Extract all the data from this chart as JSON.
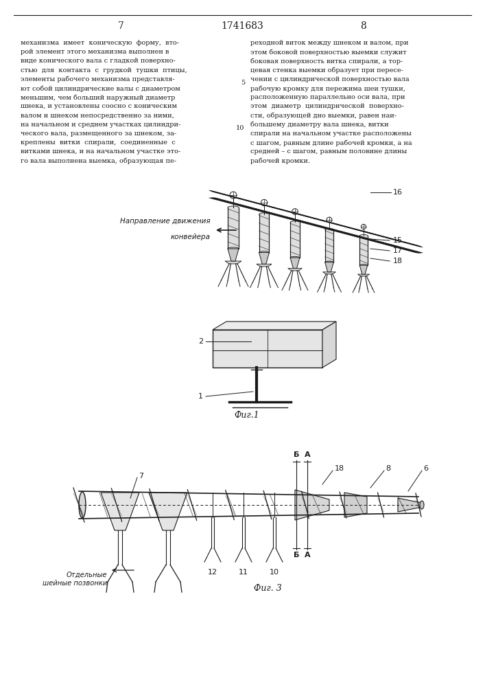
{
  "page_left": "7",
  "page_right": "8",
  "patent_number": "1741683",
  "text_left_lines": [
    "механизма  имеет  коническую  форму,  вто-",
    "рой элемент этого механизма выполнен в",
    "виде конического вала с гладкой поверхно-",
    "стью  для  контакта  с  грудкой  тушки  птицы,",
    "элементы рабочего механизма представля-",
    "ют собой цилиндрические валы с диаметром",
    "меньшим, чем больший наружный диаметр",
    "шнека, и установлены соосно с коническим",
    "валом и шнеком непосредственно за ними,",
    "на начальном и среднем участках цилиндри-",
    "ческого вала, размещенного за шнеком, за-",
    "креплены  витки  спирали,  соединенные  с",
    "витками шнека, и на начальном участке это-",
    "го вала выполнена выемка, образующая пе-"
  ],
  "text_right_lines": [
    "реходной виток между шнеком и валом, при",
    "этом боковой поверхностью выемки служит",
    "боковая поверхность витка спирали, а тор-",
    "цевая стенка выемки образует при пересе-",
    "чении с цилиндрической поверхностью вала",
    "рабочую кромку для пережима шеи тушки,",
    "расположенную параллельно оси вала, при",
    "этом  диаметр  цилиндрической  поверхно-",
    "сти, образующей дно выемки, равен наи-",
    "большему диаметру вала шнека, витки",
    "спирали на начальном участке расположены",
    "с шагом, равным длине рабочей кромки, а на",
    "средней – с шагом, равным половине длины",
    "рабочей кромки."
  ],
  "fig1_label": "Фиг.1",
  "fig3_label": "Фиг. 3",
  "conveyor_line1": "Направление движения",
  "conveyor_line2": "конвейера",
  "n16": "16",
  "n15": "15",
  "n17": "17",
  "n18": "18",
  "n2": "2",
  "n1": "1",
  "n7": "7",
  "n12": "12",
  "n11": "11",
  "n10": "10",
  "n18b": "18",
  "n8": "8",
  "n6": "6",
  "nB1": "Б",
  "nA1": "А",
  "nB2": "Б",
  "nA2": "А",
  "otd": "Отдельные\nшейные позвонки",
  "bg": "#ffffff",
  "lc": "#1a1a1a",
  "tc": "#1a1a1a"
}
